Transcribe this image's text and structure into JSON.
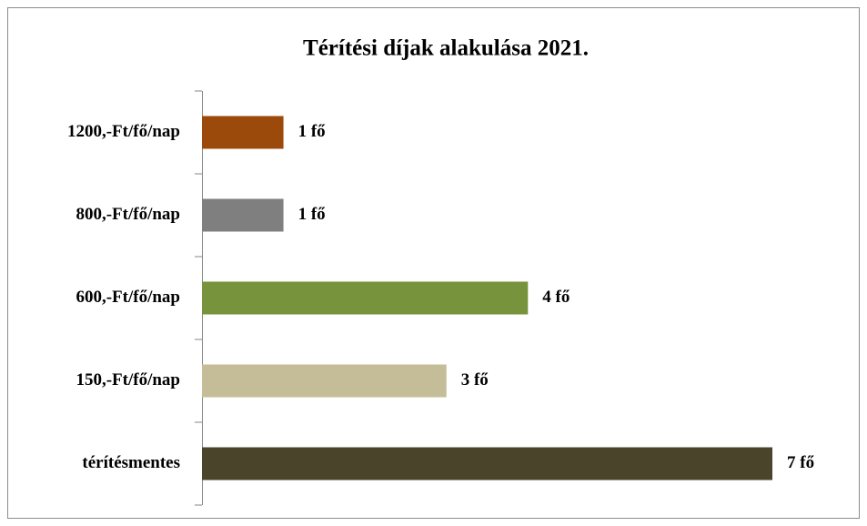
{
  "chart_data": {
    "type": "bar",
    "orientation": "horizontal",
    "title": "Térítési díjak alakulása 2021.",
    "categories": [
      "1200,-Ft/fő/nap",
      "800,-Ft/fő/nap",
      "600,-Ft/fő/nap",
      "150,-Ft/fő/nap",
      "térítésmentes"
    ],
    "values": [
      1,
      1,
      4,
      3,
      7
    ],
    "value_labels": [
      "1 fő",
      "1 fő",
      "4 fő",
      "3 fő",
      "7 fő"
    ],
    "colors": [
      "#9c4a0b",
      "#7f7f7f",
      "#77933c",
      "#c4bd97",
      "#4a452a"
    ]
  }
}
